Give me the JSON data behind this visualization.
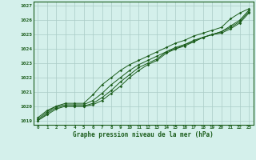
{
  "xlabel": "Graphe pression niveau de la mer (hPa)",
  "ylim": [
    1018.7,
    1027.3
  ],
  "xlim": [
    -0.5,
    23.5
  ],
  "yticks": [
    1019,
    1020,
    1021,
    1022,
    1023,
    1024,
    1025,
    1026,
    1027
  ],
  "xticks": [
    0,
    1,
    2,
    3,
    4,
    5,
    6,
    7,
    8,
    9,
    10,
    11,
    12,
    13,
    14,
    15,
    16,
    17,
    18,
    19,
    20,
    21,
    22,
    23
  ],
  "background_color": "#d4f0eb",
  "grid_color": "#aaccc6",
  "line_color": "#1a5c1a",
  "text_color": "#1a5c1a",
  "series": [
    [
      1019.2,
      1019.7,
      1020.0,
      1020.2,
      1020.2,
      1020.2,
      1020.8,
      1021.5,
      1022.0,
      1022.5,
      1022.9,
      1023.2,
      1023.5,
      1023.8,
      1024.1,
      1024.4,
      1024.6,
      1024.9,
      1025.1,
      1025.3,
      1025.5,
      1026.1,
      1026.5,
      1026.8
    ],
    [
      1019.1,
      1019.6,
      1020.0,
      1020.1,
      1020.1,
      1020.1,
      1020.4,
      1020.9,
      1021.5,
      1022.0,
      1022.5,
      1022.9,
      1023.2,
      1023.5,
      1023.8,
      1024.1,
      1024.3,
      1024.6,
      1024.8,
      1025.0,
      1025.2,
      1025.6,
      1026.0,
      1026.7
    ],
    [
      1019.0,
      1019.5,
      1019.9,
      1020.0,
      1020.0,
      1020.0,
      1020.2,
      1020.6,
      1021.1,
      1021.7,
      1022.2,
      1022.7,
      1023.0,
      1023.3,
      1023.8,
      1024.0,
      1024.3,
      1024.5,
      1024.8,
      1025.0,
      1025.2,
      1025.5,
      1025.9,
      1026.6
    ],
    [
      1019.0,
      1019.4,
      1019.8,
      1020.0,
      1020.0,
      1020.0,
      1020.1,
      1020.4,
      1020.9,
      1021.4,
      1022.0,
      1022.5,
      1022.9,
      1023.2,
      1023.7,
      1024.0,
      1024.2,
      1024.5,
      1024.8,
      1025.0,
      1025.1,
      1025.4,
      1025.8,
      1026.5
    ]
  ]
}
